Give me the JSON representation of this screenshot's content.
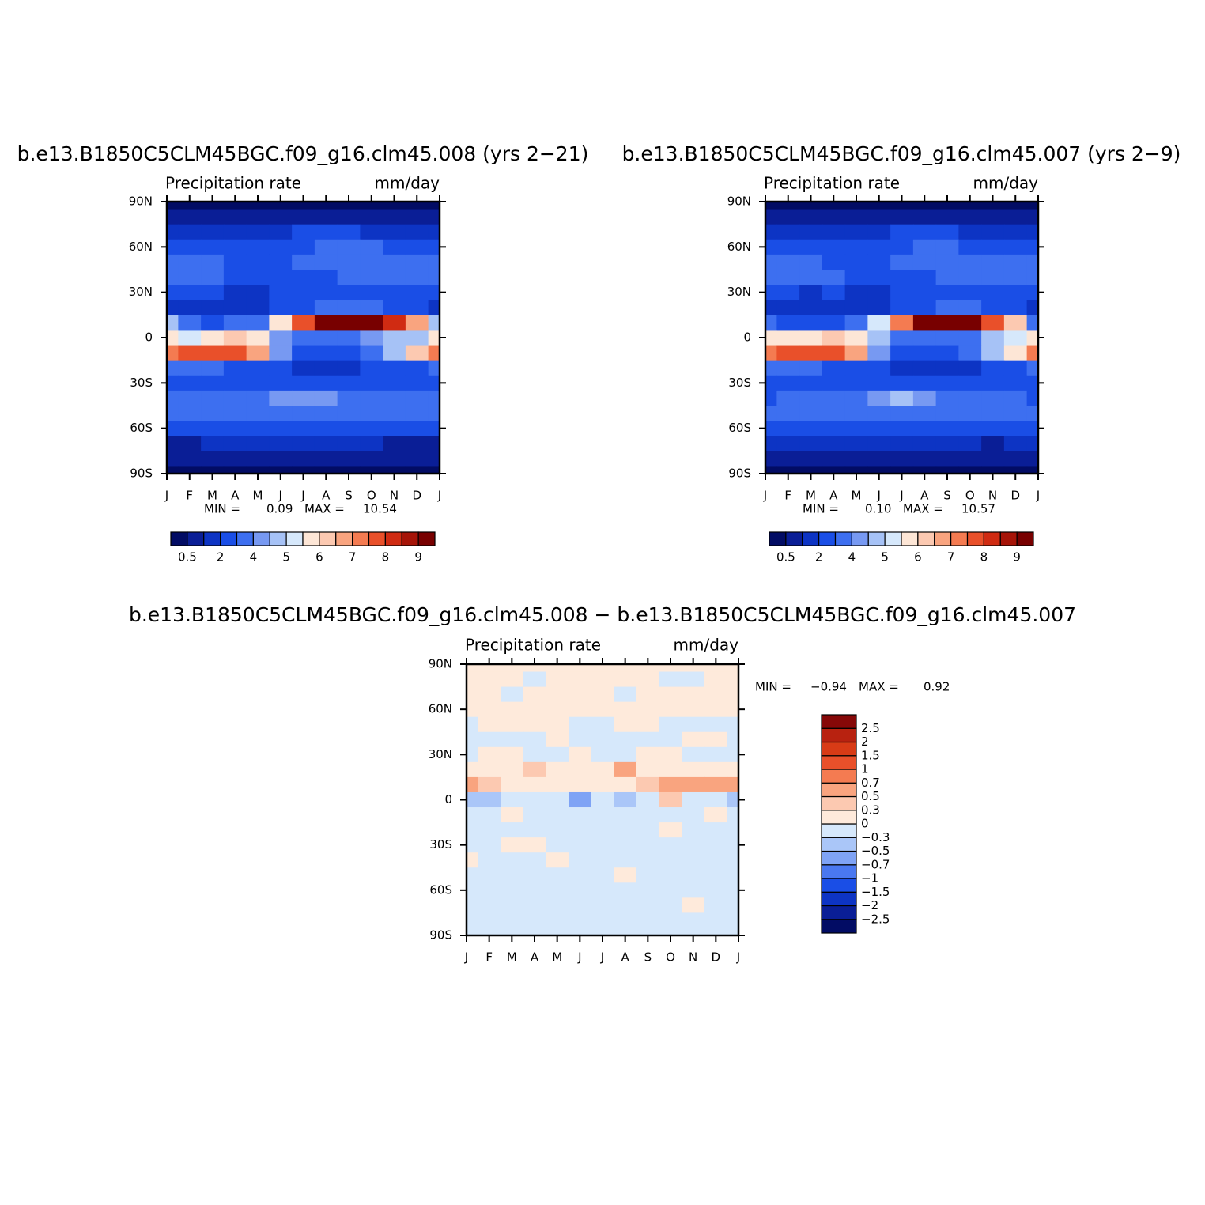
{
  "chart_data": [
    {
      "type": "contour",
      "title": "b.e13.B1850C5CLM45BGC.f09_g16.clm45.008 (yrs 2−21)",
      "subtitle": "Precipitation rate",
      "units": "mm/day",
      "categories": [
        "J",
        "F",
        "M",
        "A",
        "M",
        "J",
        "J",
        "A",
        "S",
        "O",
        "N",
        "D",
        "J"
      ],
      "y": [
        90,
        80,
        70,
        60,
        50,
        40,
        30,
        20,
        10,
        0,
        -10,
        -20,
        -30,
        -40,
        -50,
        -60,
        -70,
        -80,
        -90
      ],
      "ylim": [
        -90,
        90
      ],
      "yticks": [
        {
          "value": 90,
          "label": "90N"
        },
        {
          "value": 60,
          "label": "60N"
        },
        {
          "value": 30,
          "label": "30N"
        },
        0,
        {
          "value": -30,
          "label": "30S"
        },
        {
          "value": -60,
          "label": "60S"
        },
        {
          "value": -90,
          "label": "90S"
        }
      ],
      "min_label": "MIN =",
      "min": "0.09",
      "max_label": "MAX =",
      "max": "10.54",
      "colorbar": "horizontal",
      "levels": [
        0.5,
        2,
        4,
        5,
        6,
        7,
        8,
        9
      ],
      "colors": [
        "#020c64",
        "#0a1e96",
        "#0d34c4",
        "#1a4ee6",
        "#3d6ff0",
        "#7799f2",
        "#a6c2f6",
        "#d6e8fb",
        "#fde6d6",
        "#fcc9b1",
        "#f9a47f",
        "#f47b51",
        "#e9502a",
        "#d02b12",
        "#a61408",
        "#780000"
      ],
      "z": [
        [
          0.3,
          0.3,
          0.3,
          0.3,
          0.3,
          0.3,
          0.3,
          0.3,
          0.3,
          0.3,
          0.3,
          0.3,
          0.3
        ],
        [
          0.7,
          0.7,
          0.8,
          0.8,
          0.9,
          1.0,
          1.1,
          1.1,
          1.0,
          0.9,
          0.8,
          0.7,
          0.7
        ],
        [
          1.6,
          1.6,
          1.5,
          1.5,
          1.6,
          1.8,
          2.0,
          2.1,
          2.0,
          1.9,
          1.8,
          1.7,
          1.6
        ],
        [
          2.6,
          2.5,
          2.4,
          2.3,
          2.3,
          2.6,
          2.8,
          3.0,
          3.0,
          3.0,
          2.9,
          2.8,
          2.6
        ],
        [
          3.3,
          3.2,
          3.0,
          2.9,
          2.7,
          2.8,
          3.0,
          3.1,
          3.3,
          3.5,
          3.6,
          3.5,
          3.3
        ],
        [
          3.6,
          3.4,
          3.1,
          2.9,
          2.7,
          2.6,
          2.8,
          2.8,
          3.0,
          3.4,
          3.7,
          3.7,
          3.6
        ],
        [
          2.6,
          2.3,
          2.0,
          1.9,
          1.8,
          2.0,
          2.5,
          2.8,
          2.8,
          2.8,
          2.7,
          2.7,
          2.6
        ],
        [
          1.9,
          1.7,
          1.6,
          1.6,
          1.7,
          2.0,
          2.6,
          3.2,
          3.4,
          3.2,
          2.6,
          2.2,
          1.9
        ],
        [
          4.5,
          3.2,
          2.8,
          3.0,
          3.6,
          5.5,
          7.5,
          9.5,
          10.2,
          9.5,
          8.0,
          6.5,
          4.5
        ],
        [
          5.5,
          5.0,
          5.5,
          6.2,
          5.5,
          4.2,
          3.5,
          3.3,
          3.5,
          4.0,
          4.5,
          4.8,
          5.5
        ],
        [
          7.0,
          7.5,
          7.8,
          7.5,
          6.5,
          4.0,
          2.8,
          2.5,
          2.5,
          3.0,
          4.5,
          6.0,
          7.0
        ],
        [
          3.0,
          3.0,
          3.0,
          2.8,
          2.5,
          2.0,
          1.8,
          1.8,
          1.8,
          2.0,
          2.4,
          2.8,
          3.0
        ],
        [
          2.6,
          2.6,
          2.5,
          2.4,
          2.3,
          2.2,
          2.2,
          2.2,
          2.3,
          2.4,
          2.5,
          2.6,
          2.6
        ],
        [
          3.0,
          3.1,
          3.3,
          3.5,
          3.7,
          4.0,
          4.4,
          4.0,
          3.8,
          3.6,
          3.4,
          3.2,
          3.0
        ],
        [
          3.2,
          3.2,
          3.3,
          3.4,
          3.5,
          3.5,
          3.5,
          3.5,
          3.5,
          3.4,
          3.3,
          3.2,
          3.2
        ],
        [
          2.2,
          2.2,
          2.3,
          2.4,
          2.4,
          2.4,
          2.4,
          2.4,
          2.4,
          2.3,
          2.3,
          2.2,
          2.2
        ],
        [
          1.2,
          1.2,
          1.3,
          1.3,
          1.3,
          1.3,
          1.3,
          1.3,
          1.3,
          1.3,
          1.2,
          1.2,
          1.2
        ],
        [
          0.6,
          0.6,
          0.6,
          0.6,
          0.6,
          0.6,
          0.6,
          0.6,
          0.6,
          0.6,
          0.6,
          0.6,
          0.6
        ],
        [
          0.3,
          0.3,
          0.3,
          0.3,
          0.3,
          0.3,
          0.3,
          0.3,
          0.3,
          0.3,
          0.3,
          0.3,
          0.3
        ]
      ]
    },
    {
      "type": "contour",
      "title": "b.e13.B1850C5CLM45BGC.f09_g16.clm45.007 (yrs 2−9)",
      "subtitle": "Precipitation rate",
      "units": "mm/day",
      "categories": [
        "J",
        "F",
        "M",
        "A",
        "M",
        "J",
        "J",
        "A",
        "S",
        "O",
        "N",
        "D",
        "J"
      ],
      "y": [
        90,
        80,
        70,
        60,
        50,
        40,
        30,
        20,
        10,
        0,
        -10,
        -20,
        -30,
        -40,
        -50,
        -60,
        -70,
        -80,
        -90
      ],
      "ylim": [
        -90,
        90
      ],
      "yticks": [
        {
          "value": 90,
          "label": "90N"
        },
        {
          "value": 60,
          "label": "60N"
        },
        {
          "value": 30,
          "label": "30N"
        },
        0,
        {
          "value": -30,
          "label": "30S"
        },
        {
          "value": -60,
          "label": "60S"
        },
        {
          "value": -90,
          "label": "90S"
        }
      ],
      "min_label": "MIN =",
      "min": "0.10",
      "max_label": "MAX =",
      "max": "10.57",
      "colorbar": "horizontal",
      "levels": [
        0.5,
        2,
        4,
        5,
        6,
        7,
        8,
        9
      ],
      "colors": [
        "#020c64",
        "#0a1e96",
        "#0d34c4",
        "#1a4ee6",
        "#3d6ff0",
        "#7799f2",
        "#a6c2f6",
        "#d6e8fb",
        "#fde6d6",
        "#fcc9b1",
        "#f9a47f",
        "#f47b51",
        "#e9502a",
        "#d02b12",
        "#a61408",
        "#780000"
      ],
      "z": [
        [
          0.3,
          0.3,
          0.3,
          0.3,
          0.3,
          0.3,
          0.3,
          0.3,
          0.3,
          0.3,
          0.3,
          0.3,
          0.3
        ],
        [
          0.7,
          0.7,
          0.8,
          0.8,
          0.9,
          1.0,
          1.1,
          1.1,
          1.0,
          0.9,
          0.8,
          0.7,
          0.7
        ],
        [
          1.6,
          1.6,
          1.5,
          1.5,
          1.6,
          1.8,
          2.0,
          2.1,
          2.0,
          1.9,
          1.8,
          1.7,
          1.6
        ],
        [
          2.5,
          2.4,
          2.4,
          2.3,
          2.3,
          2.5,
          2.8,
          3.0,
          3.0,
          2.9,
          2.9,
          2.8,
          2.5
        ],
        [
          3.4,
          3.2,
          3.0,
          2.9,
          2.7,
          2.9,
          3.1,
          3.1,
          3.3,
          3.6,
          3.6,
          3.6,
          3.4
        ],
        [
          3.7,
          3.5,
          3.2,
          3.0,
          2.6,
          2.7,
          2.9,
          2.9,
          3.1,
          3.5,
          3.6,
          3.6,
          3.7
        ],
        [
          2.7,
          2.2,
          1.9,
          2.0,
          1.9,
          1.9,
          2.6,
          2.3,
          2.7,
          2.7,
          2.8,
          2.8,
          2.7
        ],
        [
          1.8,
          1.6,
          1.4,
          1.3,
          1.5,
          1.9,
          2.4,
          2.8,
          3.2,
          3.1,
          2.4,
          2.0,
          1.8
        ],
        [
          3.9,
          2.8,
          2.6,
          2.8,
          3.5,
          5.4,
          7.4,
          9.3,
          10.0,
          9.0,
          7.5,
          6.0,
          3.9
        ],
        [
          5.9,
          5.5,
          5.7,
          6.4,
          5.8,
          4.8,
          3.8,
          3.7,
          3.7,
          3.6,
          4.7,
          5.1,
          5.9
        ],
        [
          7.1,
          7.6,
          7.7,
          7.6,
          6.6,
          4.1,
          2.9,
          2.6,
          2.6,
          3.1,
          4.6,
          5.9,
          7.1
        ],
        [
          3.1,
          3.1,
          3.1,
          2.9,
          2.6,
          2.1,
          1.9,
          1.9,
          1.9,
          1.9,
          2.5,
          2.9,
          3.1
        ],
        [
          2.7,
          2.7,
          2.4,
          2.3,
          2.4,
          2.3,
          2.3,
          2.3,
          2.4,
          2.5,
          2.6,
          2.7,
          2.7
        ],
        [
          2.9,
          3.2,
          3.4,
          3.6,
          3.6,
          4.1,
          4.5,
          4.1,
          3.9,
          3.7,
          3.5,
          3.3,
          2.9
        ],
        [
          3.3,
          3.3,
          3.4,
          3.5,
          3.6,
          3.6,
          3.6,
          3.4,
          3.6,
          3.5,
          3.4,
          3.3,
          3.3
        ],
        [
          2.3,
          2.3,
          2.4,
          2.5,
          2.5,
          2.5,
          2.5,
          2.5,
          2.5,
          2.4,
          2.4,
          2.3,
          2.3
        ],
        [
          1.3,
          1.3,
          1.4,
          1.4,
          1.4,
          1.4,
          1.4,
          1.4,
          1.4,
          1.4,
          1.1,
          1.3,
          1.3
        ],
        [
          0.7,
          0.7,
          0.7,
          0.7,
          0.7,
          0.7,
          0.7,
          0.7,
          0.7,
          0.7,
          0.7,
          0.7,
          0.7
        ],
        [
          0.4,
          0.4,
          0.4,
          0.4,
          0.4,
          0.4,
          0.4,
          0.4,
          0.4,
          0.4,
          0.4,
          0.4,
          0.4
        ]
      ]
    },
    {
      "type": "contour",
      "title": "b.e13.B1850C5CLM45BGC.f09_g16.clm45.008 − b.e13.B1850C5CLM45BGC.f09_g16.clm45.007",
      "subtitle": "Precipitation rate",
      "units": "mm/day",
      "categories": [
        "J",
        "F",
        "M",
        "A",
        "M",
        "J",
        "J",
        "A",
        "S",
        "O",
        "N",
        "D",
        "J"
      ],
      "y": [
        90,
        80,
        70,
        60,
        50,
        40,
        30,
        20,
        10,
        0,
        -10,
        -20,
        -30,
        -40,
        -50,
        -60,
        -70,
        -80,
        -90
      ],
      "ylim": [
        -90,
        90
      ],
      "yticks": [
        {
          "value": 90,
          "label": "90N"
        },
        {
          "value": 60,
          "label": "60N"
        },
        {
          "value": 30,
          "label": "30N"
        },
        0,
        {
          "value": -30,
          "label": "30S"
        },
        {
          "value": -60,
          "label": "60S"
        },
        {
          "value": -90,
          "label": "90S"
        }
      ],
      "min_label": "MIN =",
      "min": "−0.94",
      "max_label": "MAX =",
      "max": "0.92",
      "colorbar": "vertical",
      "levels": [
        {
          "value": -2.5,
          "label": "−2.5"
        },
        {
          "value": -2,
          "label": "−2"
        },
        {
          "value": -1.5,
          "label": "−1.5"
        },
        {
          "value": -1,
          "label": "−1"
        },
        {
          "value": -0.7,
          "label": "−0.7"
        },
        {
          "value": -0.5,
          "label": "−0.5"
        },
        {
          "value": -0.3,
          "label": "−0.3"
        },
        0,
        0.3,
        0.5,
        0.7,
        1,
        1.5,
        2,
        2.5
      ],
      "colors": [
        "#020c64",
        "#0a1e96",
        "#0d34c4",
        "#1a4ee6",
        "#4a78f0",
        "#7fa3f5",
        "#aac6f8",
        "#d6e8fb",
        "#feeadb",
        "#fcc9b1",
        "#f9a47f",
        "#f47b51",
        "#e9502a",
        "#d83b16",
        "#b82210",
        "#860808"
      ],
      "z": [
        [
          0.1,
          0.1,
          0.1,
          0.1,
          0.1,
          0.1,
          0.1,
          0.1,
          0.1,
          0.1,
          0.1,
          0.1,
          0.1
        ],
        [
          0.1,
          0.1,
          0.1,
          -0.1,
          0.1,
          0.1,
          0.1,
          0.1,
          0.1,
          -0.1,
          -0.1,
          0.1,
          0.1
        ],
        [
          0.1,
          0.1,
          -0.1,
          0.1,
          0.1,
          0.1,
          0.1,
          -0.1,
          0.1,
          0.1,
          0.1,
          0.1,
          0.1
        ],
        [
          0.1,
          0.1,
          0.1,
          0.1,
          0.1,
          0.1,
          0.1,
          0.1,
          0.1,
          0.1,
          0.1,
          0.1,
          0.1
        ],
        [
          -0.1,
          0.1,
          0.1,
          0.1,
          0.1,
          -0.1,
          -0.1,
          0.1,
          0.1,
          -0.1,
          -0.1,
          -0.1,
          -0.1
        ],
        [
          -0.1,
          -0.1,
          -0.1,
          -0.1,
          0.1,
          -0.1,
          -0.1,
          -0.1,
          -0.1,
          -0.1,
          0.1,
          0.1,
          -0.1
        ],
        [
          -0.1,
          0.1,
          0.1,
          -0.1,
          -0.1,
          0.1,
          -0.1,
          -0.1,
          0.1,
          0.1,
          -0.1,
          -0.1,
          -0.1
        ],
        [
          0.1,
          0.1,
          0.2,
          0.4,
          0.2,
          0.1,
          0.2,
          0.5,
          0.2,
          0.1,
          0.2,
          0.2,
          0.1
        ],
        [
          0.6,
          0.4,
          0.2,
          0.2,
          0.1,
          0.1,
          0.1,
          0.2,
          0.3,
          0.5,
          0.5,
          0.5,
          0.6
        ],
        [
          -0.4,
          -0.5,
          -0.2,
          -0.2,
          -0.3,
          -0.6,
          -0.3,
          -0.4,
          -0.2,
          0.4,
          -0.2,
          -0.3,
          -0.4
        ],
        [
          -0.1,
          -0.1,
          0.1,
          -0.1,
          -0.1,
          -0.1,
          -0.1,
          -0.1,
          -0.1,
          -0.1,
          -0.1,
          0.1,
          -0.1
        ],
        [
          -0.1,
          -0.1,
          -0.1,
          -0.1,
          -0.1,
          -0.1,
          -0.1,
          -0.1,
          -0.1,
          0.1,
          -0.1,
          -0.1,
          -0.1
        ],
        [
          -0.1,
          -0.1,
          0.1,
          0.1,
          -0.1,
          -0.1,
          -0.1,
          -0.1,
          -0.1,
          -0.1,
          -0.1,
          -0.1,
          -0.1
        ],
        [
          0.1,
          -0.1,
          -0.1,
          -0.1,
          0.1,
          -0.1,
          -0.1,
          -0.1,
          -0.1,
          -0.1,
          -0.1,
          -0.1,
          -0.1
        ],
        [
          -0.1,
          -0.1,
          -0.1,
          -0.1,
          -0.1,
          -0.1,
          -0.1,
          0.1,
          -0.1,
          -0.1,
          -0.1,
          -0.1,
          -0.1
        ],
        [
          -0.1,
          -0.1,
          -0.1,
          -0.1,
          -0.1,
          -0.1,
          -0.1,
          -0.1,
          -0.1,
          -0.1,
          -0.1,
          -0.1,
          -0.1
        ],
        [
          -0.1,
          -0.1,
          -0.1,
          -0.1,
          -0.1,
          -0.1,
          -0.1,
          -0.1,
          -0.1,
          -0.1,
          0.1,
          -0.1,
          -0.1
        ],
        [
          -0.1,
          -0.1,
          -0.1,
          -0.1,
          -0.1,
          -0.1,
          -0.1,
          -0.1,
          -0.1,
          -0.1,
          -0.1,
          -0.1,
          -0.1
        ],
        [
          -0.1,
          -0.1,
          -0.1,
          -0.1,
          -0.1,
          -0.1,
          -0.1,
          -0.1,
          -0.1,
          -0.1,
          -0.1,
          -0.1,
          -0.1
        ]
      ]
    }
  ]
}
